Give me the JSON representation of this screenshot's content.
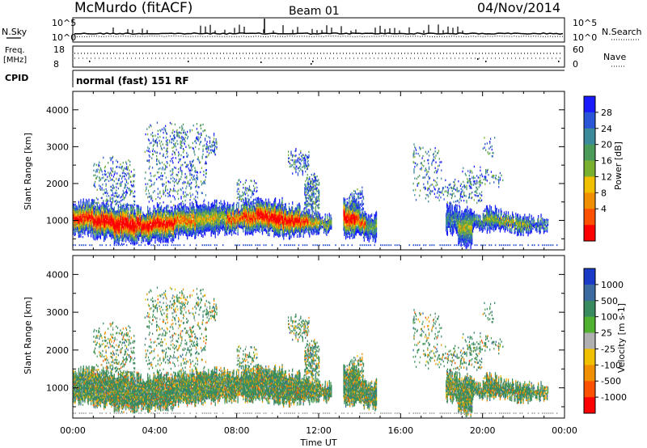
{
  "header": {
    "title": "McMurdo (fitACF)",
    "beam": "Beam 01",
    "date": "04/Nov/2014"
  },
  "top_panel": {
    "nsky_label": "N.Sky",
    "nsky_ticks": [
      "10^5",
      "10^0"
    ],
    "nsearch_label": "N.Search",
    "nsearch_ticks": [
      "10^5",
      "10^0"
    ],
    "freq_label": "Freq.",
    "freq_unit": "[MHz]",
    "freq_ticks": [
      "18",
      "8"
    ],
    "nave_label": "Nave",
    "nave_ticks": [
      "60",
      "0"
    ],
    "cpid_label": "CPID",
    "cpid_value": "normal (fast) 151 RF"
  },
  "chart_data": [
    {
      "type": "heatmap",
      "name": "power",
      "ylabel": "Slant Range [km]",
      "yticks": [
        "4000",
        "3000",
        "2000",
        "1000"
      ],
      "ylim": [
        200,
        4500
      ],
      "colorbar": {
        "label": "Power [dB]",
        "ticks": [
          "28",
          "24",
          "20",
          "16",
          "12",
          "8",
          "4"
        ],
        "colors": [
          "#1a1aff",
          "#2a55d6",
          "#3a8a9a",
          "#4a9a5a",
          "#7ab030",
          "#f0c000",
          "#f09000",
          "#ff5000",
          "#ff0000"
        ]
      }
    },
    {
      "type": "heatmap",
      "name": "velocity",
      "ylabel": "Slant Range [km]",
      "yticks": [
        "4000",
        "3000",
        "2000",
        "1000"
      ],
      "ylim": [
        200,
        4500
      ],
      "xlabel": "Time UT",
      "xticks": [
        "00:00",
        "04:00",
        "08:00",
        "12:00",
        "16:00",
        "20:00",
        "00:00"
      ],
      "colorbar": {
        "label": "Velocity [m s-1]",
        "ticks": [
          "1000",
          "500",
          "100",
          "25",
          "-25",
          "-100",
          "-500",
          "-1000"
        ],
        "colors": [
          "#1a3ac8",
          "#3a6aa0",
          "#3a8a60",
          "#50b030",
          "#b0b0b0",
          "#f0c000",
          "#f09000",
          "#ff5000",
          "#ff0000"
        ]
      }
    }
  ]
}
